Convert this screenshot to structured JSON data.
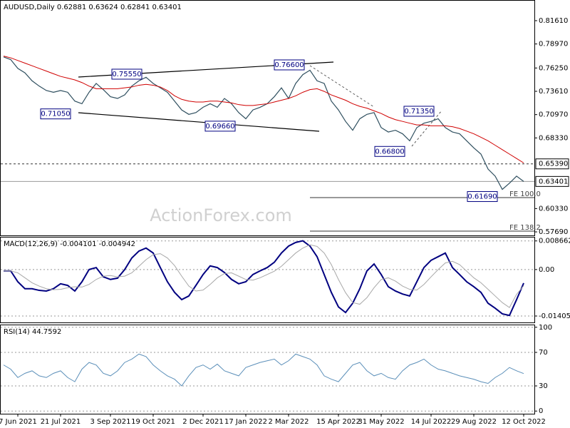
{
  "chart_data": [
    {
      "type": "line",
      "title": "AUDUSD,Daily  0.62881 0.63624 0.62841 0.63401",
      "watermark": "ActionForex.com",
      "categories": [
        null,
        null,
        "7 Jun 2021",
        null,
        null,
        null,
        null,
        null,
        "21 Jul 2021",
        null,
        null,
        null,
        null,
        null,
        null,
        "3 Sep 2021",
        null,
        null,
        null,
        null,
        null,
        "19 Oct 2021",
        null,
        null,
        null,
        null,
        null,
        null,
        "2 Dec 2021",
        null,
        null,
        null,
        null,
        null,
        "17 Jan 2022",
        null,
        null,
        null,
        null,
        null,
        "2 Mar 2022",
        null,
        null,
        null,
        null,
        null,
        null,
        "15 Apr 2022",
        null,
        null,
        null,
        null,
        null,
        "31 May 2022",
        null,
        null,
        null,
        null,
        null,
        null,
        "14 Jul 2022",
        null,
        null,
        null,
        null,
        null,
        "29 Aug 2022",
        null,
        null,
        null,
        null,
        null,
        null,
        "12 Oct 2022"
      ],
      "series": [
        {
          "color": "#2f4f5f",
          "width": 1.2,
          "values": [
            0.775,
            0.772,
            0.762,
            0.757,
            0.748,
            0.742,
            0.737,
            0.735,
            0.737,
            0.735,
            0.725,
            0.722,
            0.735,
            0.745,
            0.738,
            0.73,
            0.728,
            0.732,
            0.742,
            0.748,
            0.752,
            0.745,
            0.74,
            0.735,
            0.725,
            0.715,
            0.71,
            0.712,
            0.718,
            0.722,
            0.718,
            0.728,
            0.722,
            0.712,
            0.705,
            0.715,
            0.718,
            0.722,
            0.73,
            0.74,
            0.728,
            0.745,
            0.755,
            0.76,
            0.748,
            0.745,
            0.725,
            0.715,
            0.702,
            0.692,
            0.705,
            0.71,
            0.712,
            0.695,
            0.69,
            0.692,
            0.688,
            0.68,
            0.695,
            0.7,
            0.702,
            0.705,
            0.695,
            0.69,
            0.688,
            0.68,
            0.672,
            0.665,
            0.648,
            0.64,
            0.625,
            0.632,
            0.64,
            0.634
          ]
        },
        {
          "color": "#d00000",
          "width": 1,
          "values": [
            0.776,
            0.774,
            0.771,
            0.768,
            0.765,
            0.762,
            0.759,
            0.756,
            0.753,
            0.751,
            0.749,
            0.746,
            0.742,
            0.739,
            0.739,
            0.739,
            0.739,
            0.74,
            0.741,
            0.743,
            0.744,
            0.743,
            0.741,
            0.737,
            0.731,
            0.727,
            0.725,
            0.724,
            0.724,
            0.725,
            0.725,
            0.724,
            0.723,
            0.721,
            0.72,
            0.72,
            0.721,
            0.722,
            0.724,
            0.726,
            0.728,
            0.731,
            0.735,
            0.738,
            0.739,
            0.736,
            0.732,
            0.729,
            0.726,
            0.722,
            0.719,
            0.717,
            0.714,
            0.711,
            0.707,
            0.704,
            0.702,
            0.7,
            0.698,
            0.698,
            0.697,
            0.697,
            0.697,
            0.696,
            0.694,
            0.691,
            0.688,
            0.684,
            0.68,
            0.675,
            0.67,
            0.665,
            0.66,
            0.655
          ]
        }
      ],
      "ylim": [
        0.5729,
        0.8395
      ],
      "yticks": [
        {
          "value": 0.8161,
          "label": "0.81610"
        },
        {
          "value": 0.7897,
          "label": "0.78970"
        },
        {
          "value": 0.7625,
          "label": "0.76250"
        },
        {
          "value": 0.7361,
          "label": "0.73610"
        },
        {
          "value": 0.7097,
          "label": "0.70970"
        },
        {
          "value": 0.6833,
          "label": "0.68330"
        },
        {
          "value": 0.6033,
          "label": "0.60330"
        },
        {
          "value": 0.5769,
          "label": "0.57690"
        }
      ],
      "grid": false,
      "annotations": [
        {
          "value": 0.7555,
          "label": "0.75550"
        },
        {
          "value": 0.7105,
          "label": "0.71050"
        },
        {
          "value": 0.766,
          "label": "0.76600"
        },
        {
          "value": 0.6966,
          "label": "0.69660"
        },
        {
          "value": 0.7135,
          "label": "0.71350"
        },
        {
          "value": 0.668,
          "label": "0.66800"
        },
        {
          "value": 0.6169,
          "label": "0.61690"
        }
      ],
      "levels": [
        {
          "value": 0.6539,
          "label": "0.65390"
        },
        {
          "value": 0.63401,
          "label": "0.63401"
        }
      ],
      "fe_labels": [
        "FE 100.0",
        "FE 138.2"
      ]
    },
    {
      "type": "line",
      "title": "MACD(12,26,9) -0.004101 -0.004942",
      "series": [
        {
          "color": "#000080",
          "width": 2,
          "values": [
            -0.0004,
            -0.0004,
            -0.0037,
            -0.0058,
            -0.0058,
            -0.0063,
            -0.0065,
            -0.0058,
            -0.0043,
            -0.0048,
            -0.0065,
            -0.0037,
            0.0,
            0.0006,
            -0.0022,
            -0.003,
            -0.0026,
            0.0,
            0.0035,
            0.0056,
            0.0065,
            0.005,
            0.0006,
            -0.0037,
            -0.0069,
            -0.0091,
            -0.008,
            -0.0048,
            -0.0015,
            0.0011,
            0.0006,
            -0.0009,
            -0.003,
            -0.0043,
            -0.0037,
            -0.0015,
            -0.0004,
            0.0006,
            0.0022,
            0.005,
            0.0071,
            0.0082,
            0.0087,
            0.0071,
            0.0039,
            -0.0015,
            -0.0069,
            -0.0113,
            -0.013,
            -0.0102,
            -0.0058,
            -0.0004,
            0.0017,
            -0.0015,
            -0.0052,
            -0.0065,
            -0.0074,
            -0.008,
            -0.0037,
            0.0006,
            0.0028,
            0.0039,
            0.005,
            0.0006,
            -0.0015,
            -0.0037,
            -0.0052,
            -0.0069,
            -0.0102,
            -0.0117,
            -0.0134,
            -0.0139,
            -0.0091,
            -0.0041
          ]
        },
        {
          "color": "#a8a8a8",
          "width": 1,
          "values": [
            -0.0004,
            -0.0004,
            -0.001,
            -0.0025,
            -0.004,
            -0.005,
            -0.0058,
            -0.0061,
            -0.006,
            -0.0055,
            -0.0052,
            -0.0053,
            -0.0045,
            -0.003,
            -0.002,
            -0.0018,
            -0.0022,
            -0.002,
            -0.001,
            0.001,
            0.003,
            0.0045,
            0.0048,
            0.0035,
            0.0012,
            -0.002,
            -0.005,
            -0.0065,
            -0.0062,
            -0.0045,
            -0.0025,
            -0.0012,
            -0.001,
            -0.002,
            -0.003,
            -0.0032,
            -0.0025,
            -0.0015,
            -0.0005,
            0.001,
            0.003,
            0.005,
            0.0065,
            0.0075,
            0.007,
            0.005,
            0.0015,
            -0.003,
            -0.007,
            -0.01,
            -0.0105,
            -0.0085,
            -0.0055,
            -0.003,
            -0.0025,
            -0.0035,
            -0.005,
            -0.006,
            -0.0062,
            -0.0045,
            -0.0022,
            0.0,
            0.002,
            0.0025,
            0.0015,
            -0.0005,
            -0.0025,
            -0.004,
            -0.006,
            -0.008,
            -0.01,
            -0.0115,
            -0.0075,
            -0.0049
          ]
        }
      ],
      "ylim": [
        -0.016,
        0.0099
      ],
      "yticks": [
        0.008662,
        {
          "value": 0,
          "label": "0.00"
        },
        -0.014055
      ],
      "grid": true
    },
    {
      "type": "line",
      "title": "RSI(14) 44.7592",
      "series": [
        {
          "color": "#5b8fb9",
          "width": 1,
          "values": [
            55,
            50,
            40,
            45,
            48,
            42,
            40,
            45,
            48,
            40,
            35,
            50,
            58,
            55,
            45,
            42,
            48,
            58,
            62,
            68,
            65,
            55,
            48,
            42,
            38,
            30,
            42,
            52,
            55,
            50,
            56,
            48,
            45,
            42,
            52,
            55,
            58,
            60,
            62,
            55,
            60,
            68,
            65,
            62,
            55,
            42,
            38,
            35,
            45,
            55,
            58,
            48,
            42,
            45,
            40,
            38,
            48,
            55,
            58,
            62,
            55,
            50,
            48,
            45,
            42,
            40,
            38,
            35,
            33,
            40,
            45,
            52,
            48,
            44.7592
          ]
        }
      ],
      "ylim": [
        -3.2,
        103.2
      ],
      "yticks": [
        100,
        70,
        30,
        0
      ],
      "grid": true
    }
  ]
}
